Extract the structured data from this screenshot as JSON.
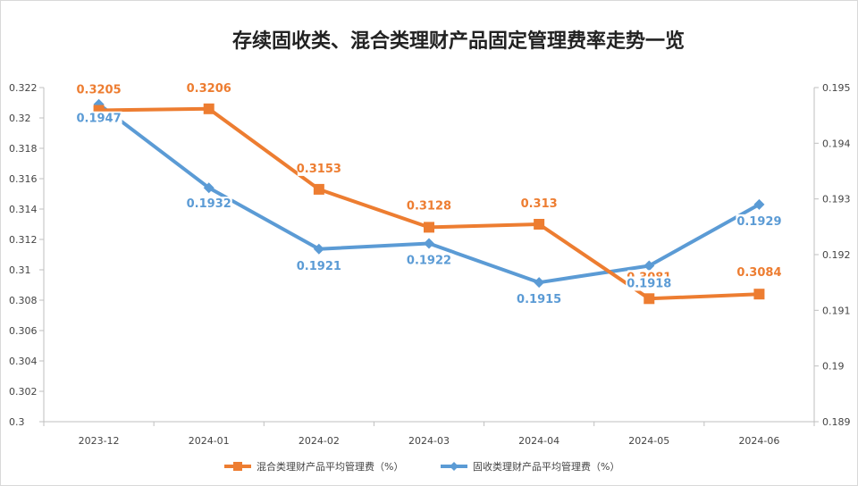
{
  "chart_data": {
    "type": "line",
    "title": "存续固收类、混合类理财产品固定管理费率走势一览",
    "categories": [
      "2023-12",
      "2024-01",
      "2024-02",
      "2024-03",
      "2024-04",
      "2024-05",
      "2024-06"
    ],
    "y_left": {
      "ylim": [
        0.3,
        0.322
      ],
      "ticks": [
        "0.3",
        "0.302",
        "0.304",
        "0.306",
        "0.308",
        "0.31",
        "0.312",
        "0.314",
        "0.316",
        "0.318",
        "0.32",
        "0.322"
      ]
    },
    "y_right": {
      "ylim": [
        0.189,
        0.195
      ],
      "ticks": [
        "0.189",
        "0.19",
        "0.191",
        "0.192",
        "0.193",
        "0.194",
        "0.195"
      ]
    },
    "series": [
      {
        "name": "混合类理财产品平均管理费（%）",
        "axis": "left",
        "color": "#ED7D31",
        "marker": "square",
        "values": [
          0.3205,
          0.3206,
          0.3153,
          0.3128,
          0.313,
          0.3081,
          0.3084
        ],
        "labels": [
          "0.3205",
          "0.3206",
          "0.3153",
          "0.3128",
          "0.313",
          "0.3081",
          "0.3084"
        ]
      },
      {
        "name": "固收类理财产品平均管理费（%）",
        "axis": "right",
        "color": "#5B9BD5",
        "marker": "diamond",
        "values": [
          0.1947,
          0.1932,
          0.1921,
          0.1922,
          0.1915,
          0.1918,
          0.1929
        ],
        "labels": [
          "0.1947",
          "0.1932",
          "0.1921",
          "0.1922",
          "0.1915",
          "0.1918",
          "0.1929"
        ]
      }
    ],
    "grid": false,
    "legend": "bottom"
  }
}
